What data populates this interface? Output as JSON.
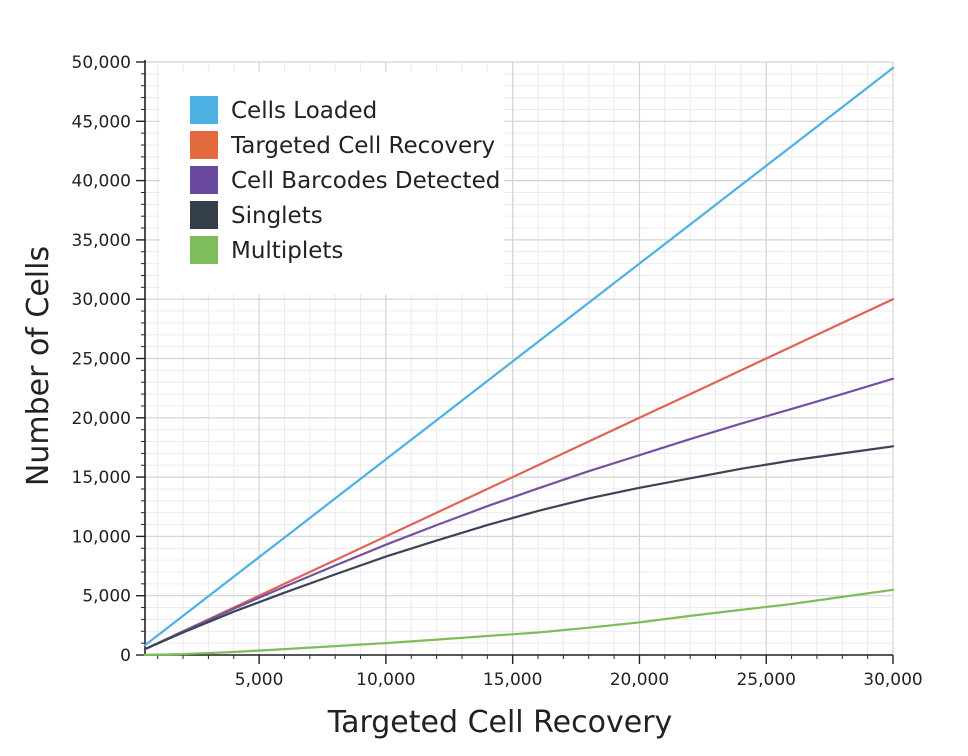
{
  "chart_data": {
    "type": "line",
    "xlabel": "Targeted Cell Recovery",
    "ylabel": "Number of Cells",
    "xlim": [
      500,
      30000
    ],
    "ylim": [
      0,
      50000
    ],
    "x_ticks": [
      5000,
      10000,
      15000,
      20000,
      25000,
      30000
    ],
    "x_tick_labels": [
      "5,000",
      "10,000",
      "15,000",
      "20,000",
      "25,000",
      "30,000"
    ],
    "y_ticks": [
      0,
      5000,
      10000,
      15000,
      20000,
      25000,
      30000,
      35000,
      40000,
      45000,
      50000
    ],
    "y_tick_labels": [
      "0",
      "5,000",
      "10,000",
      "15,000",
      "20,000",
      "25,000",
      "30,000",
      "35,000",
      "40,000",
      "45,000",
      "50,000"
    ],
    "grid": true,
    "legend_position": "top-left",
    "x": [
      500,
      2000,
      4000,
      6000,
      8000,
      10000,
      12000,
      14000,
      16000,
      18000,
      20000,
      22000,
      24000,
      26000,
      28000,
      30000
    ],
    "series": [
      {
        "name": "Cells Loaded",
        "color": "#4DB0E3",
        "values": [
          825,
          3300,
          6600,
          9900,
          13200,
          16500,
          19800,
          23100,
          26400,
          29700,
          33000,
          36300,
          39600,
          42900,
          46200,
          49500
        ]
      },
      {
        "name": "Targeted Cell Recovery",
        "color": "#E06355",
        "values": [
          500,
          2000,
          4000,
          6000,
          8000,
          10000,
          12000,
          14000,
          16000,
          18000,
          20000,
          22000,
          24000,
          26000,
          28000,
          30000
        ]
      },
      {
        "name": "Cell Barcodes Detected",
        "color": "#7452A0",
        "values": [
          500,
          1980,
          3900,
          5750,
          7550,
          9300,
          10950,
          12550,
          14050,
          15500,
          16850,
          18200,
          19500,
          20750,
          22000,
          23300
        ]
      },
      {
        "name": "Singlets",
        "color": "#3A4556",
        "values": [
          495,
          1900,
          3650,
          5250,
          6800,
          8300,
          9650,
          10950,
          12150,
          13200,
          14100,
          14900,
          15700,
          16400,
          17000,
          17600
        ]
      },
      {
        "name": "Multiplets",
        "color": "#7DBE5A",
        "values": [
          5,
          80,
          250,
          500,
          750,
          1000,
          1300,
          1600,
          1900,
          2300,
          2750,
          3300,
          3800,
          4300,
          4900,
          5500
        ]
      }
    ]
  },
  "legend": {
    "items": [
      {
        "label": "Cells Loaded",
        "color": "#4DB0E3"
      },
      {
        "label": "Targeted Cell Recovery",
        "color": "#E36A3E"
      },
      {
        "label": "Cell Barcodes Detected",
        "color": "#6A4A9E"
      },
      {
        "label": "Singlets",
        "color": "#343E48"
      },
      {
        "label": "Multiplets",
        "color": "#7DBE5A"
      }
    ]
  }
}
